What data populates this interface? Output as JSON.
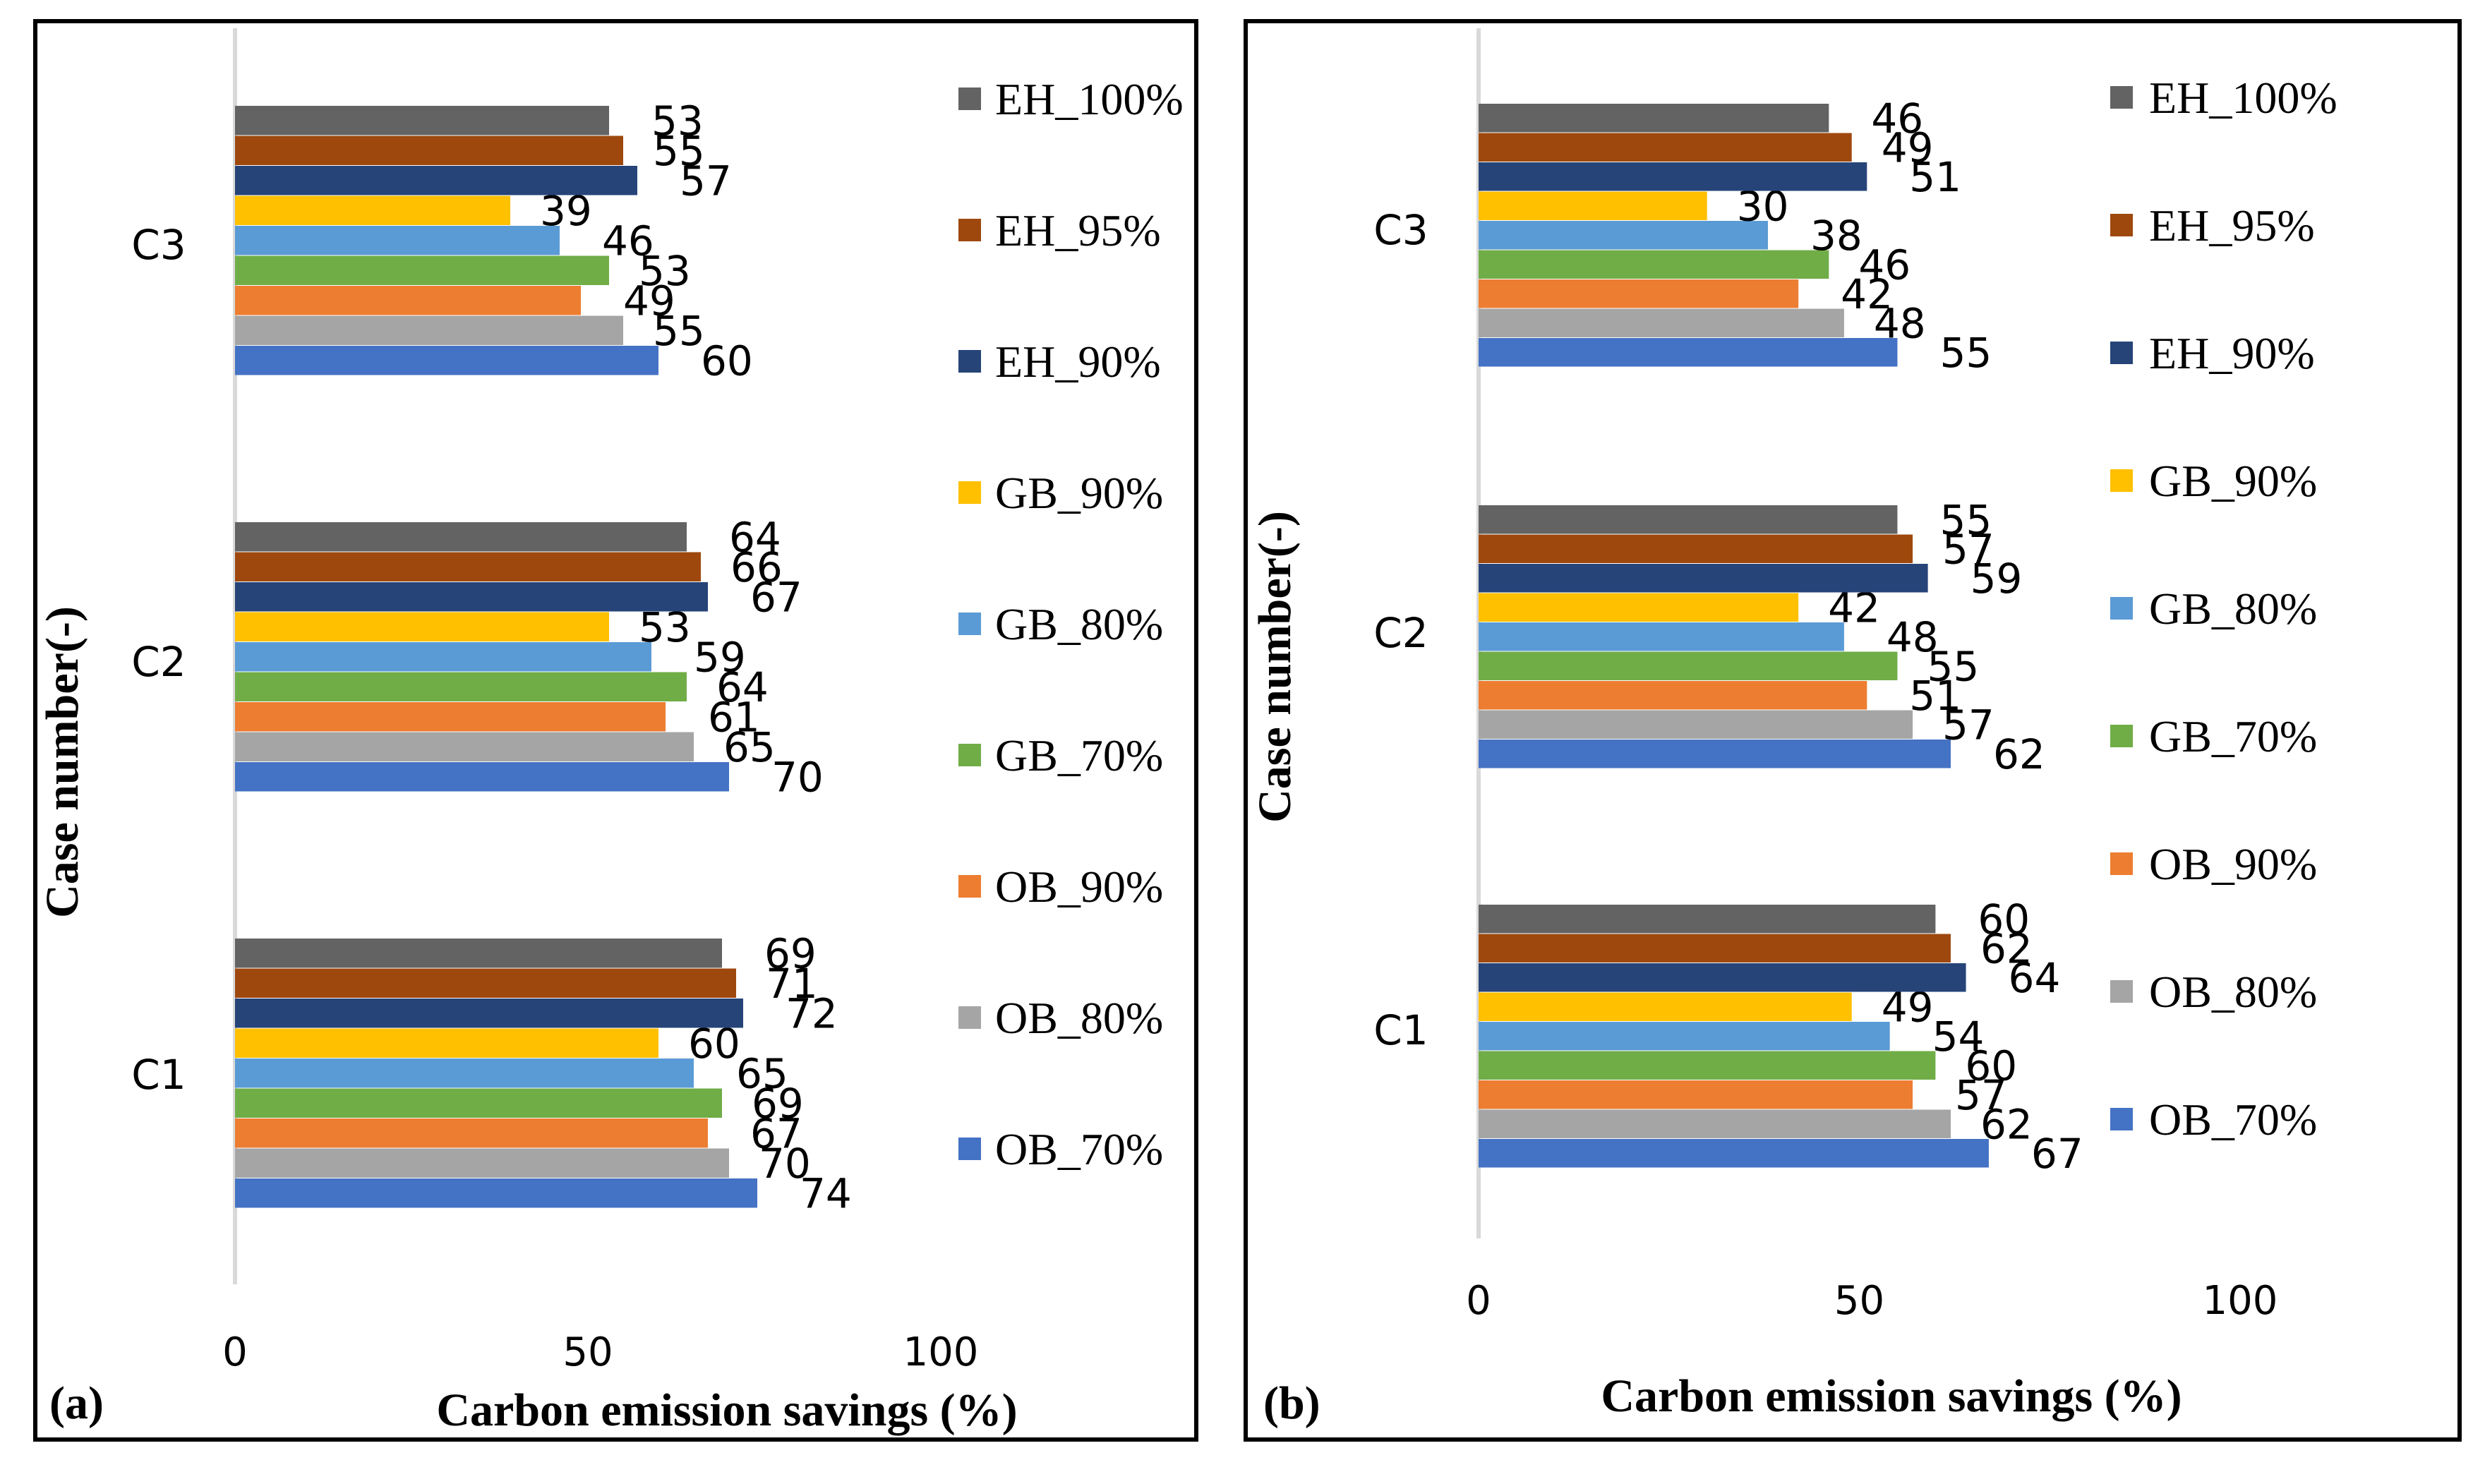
{
  "chart_data": [
    {
      "type": "bar",
      "orientation": "horizontal",
      "panel_label": "(a)",
      "xlabel": "Carbon emission savings (%)",
      "ylabel": "Case number(-)",
      "xlim": [
        0,
        100
      ],
      "x_ticks": [
        "0",
        "50",
        "100"
      ],
      "categories": [
        "C1",
        "C2",
        "C3"
      ],
      "legend_position": "right",
      "series": [
        {
          "name": "OB_70%",
          "color": "#4472C4",
          "values": [
            74,
            70,
            60
          ]
        },
        {
          "name": "OB_80%",
          "color": "#A5A5A5",
          "values": [
            70,
            65,
            55
          ]
        },
        {
          "name": "OB_90%",
          "color": "#ED7D31",
          "values": [
            67,
            61,
            49
          ]
        },
        {
          "name": "GB_70%",
          "color": "#70AD47",
          "values": [
            69,
            64,
            53
          ]
        },
        {
          "name": "GB_80%",
          "color": "#5B9BD5",
          "values": [
            65,
            59,
            46
          ]
        },
        {
          "name": "GB_90%",
          "color": "#FFC000",
          "values": [
            60,
            53,
            39
          ]
        },
        {
          "name": "EH_90%",
          "color": "#264478",
          "values": [
            72,
            67,
            57
          ]
        },
        {
          "name": "EH_95%",
          "color": "#9E480E",
          "values": [
            71,
            66,
            55
          ]
        },
        {
          "name": "EH_100%",
          "color": "#636363",
          "values": [
            69,
            64,
            53
          ]
        }
      ]
    },
    {
      "type": "bar",
      "orientation": "horizontal",
      "panel_label": "(b)",
      "xlabel": "Carbon emission savings (%)",
      "ylabel": "Case number(-)",
      "xlim": [
        0,
        100
      ],
      "x_ticks": [
        "0",
        "50",
        "100"
      ],
      "categories": [
        "C1",
        "C2",
        "C3"
      ],
      "legend_position": "right",
      "series": [
        {
          "name": "OB_70%",
          "color": "#4472C4",
          "values": [
            67,
            62,
            55
          ]
        },
        {
          "name": "OB_80%",
          "color": "#A5A5A5",
          "values": [
            62,
            57,
            48
          ]
        },
        {
          "name": "OB_90%",
          "color": "#ED7D31",
          "values": [
            57,
            51,
            42
          ]
        },
        {
          "name": "GB_70%",
          "color": "#70AD47",
          "values": [
            60,
            55,
            46
          ]
        },
        {
          "name": "GB_80%",
          "color": "#5B9BD5",
          "values": [
            54,
            48,
            38
          ]
        },
        {
          "name": "GB_90%",
          "color": "#FFC000",
          "values": [
            49,
            42,
            30
          ]
        },
        {
          "name": "EH_90%",
          "color": "#264478",
          "values": [
            64,
            59,
            51
          ]
        },
        {
          "name": "EH_95%",
          "color": "#9E480E",
          "values": [
            62,
            57,
            49
          ]
        },
        {
          "name": "EH_100%",
          "color": "#636363",
          "values": [
            60,
            55,
            46
          ]
        }
      ]
    }
  ]
}
